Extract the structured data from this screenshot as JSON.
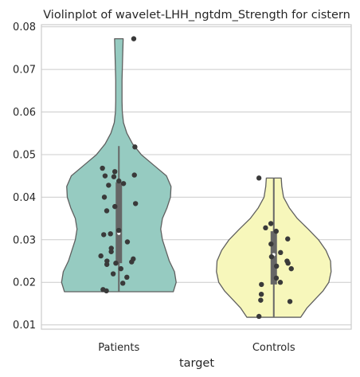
{
  "chart_data": {
    "type": "violin",
    "title": "Violinplot of wavelet-LHH_ngtdm_Strength for cistern",
    "xlabel": "target",
    "ylabel": "",
    "ylim": [
      0.009,
      0.0805
    ],
    "yticks": [
      "0.01",
      "0.02",
      "0.03",
      "0.04",
      "0.05",
      "0.06",
      "0.07",
      "0.08"
    ],
    "grid": true,
    "categories": [
      "Patients",
      "Controls"
    ],
    "series": [
      {
        "category": "Patients",
        "color": "#96cbc1",
        "min": 0.0178,
        "max": 0.0772,
        "q1": 0.0245,
        "median": 0.0315,
        "q3": 0.0435,
        "whisker_low": 0.0178,
        "whisker_high": 0.052,
        "density": [
          [
            0.0178,
            0.95
          ],
          [
            0.02,
            1.0
          ],
          [
            0.0225,
            0.97
          ],
          [
            0.025,
            0.88
          ],
          [
            0.0275,
            0.82
          ],
          [
            0.03,
            0.76
          ],
          [
            0.0325,
            0.73
          ],
          [
            0.035,
            0.76
          ],
          [
            0.0375,
            0.84
          ],
          [
            0.04,
            0.9
          ],
          [
            0.0425,
            0.91
          ],
          [
            0.045,
            0.83
          ],
          [
            0.0475,
            0.61
          ],
          [
            0.05,
            0.39
          ],
          [
            0.0525,
            0.24
          ],
          [
            0.055,
            0.14
          ],
          [
            0.0575,
            0.08
          ],
          [
            0.06,
            0.06
          ],
          [
            0.0625,
            0.055
          ],
          [
            0.065,
            0.055
          ],
          [
            0.0675,
            0.055
          ],
          [
            0.07,
            0.06
          ],
          [
            0.0725,
            0.065
          ],
          [
            0.075,
            0.07
          ],
          [
            0.0772,
            0.075
          ]
        ],
        "points": [
          0.0772,
          0.0518,
          0.0468,
          0.046,
          0.0452,
          0.045,
          0.0448,
          0.0438,
          0.0432,
          0.0428,
          0.04,
          0.0385,
          0.0378,
          0.0368,
          0.0322,
          0.0314,
          0.0312,
          0.0295,
          0.028,
          0.0272,
          0.0262,
          0.0255,
          0.025,
          0.0248,
          0.0245,
          0.0242,
          0.0232,
          0.022,
          0.0212,
          0.0198,
          0.0183,
          0.018
        ]
      },
      {
        "category": "Controls",
        "color": "#f7f7bb",
        "min": 0.0118,
        "max": 0.0445,
        "q1": 0.0195,
        "median": 0.0265,
        "q3": 0.032,
        "whisker_low": 0.0118,
        "whisker_high": 0.0445,
        "density": [
          [
            0.0118,
            0.47
          ],
          [
            0.014,
            0.58
          ],
          [
            0.016,
            0.72
          ],
          [
            0.018,
            0.86
          ],
          [
            0.02,
            0.96
          ],
          [
            0.0225,
            1.0
          ],
          [
            0.025,
            0.99
          ],
          [
            0.0275,
            0.91
          ],
          [
            0.03,
            0.78
          ],
          [
            0.0325,
            0.6
          ],
          [
            0.035,
            0.41
          ],
          [
            0.0375,
            0.27
          ],
          [
            0.04,
            0.17
          ],
          [
            0.0425,
            0.14
          ],
          [
            0.0445,
            0.13
          ]
        ],
        "points": [
          0.0445,
          0.0338,
          0.0328,
          0.032,
          0.0302,
          0.029,
          0.027,
          0.026,
          0.025,
          0.0245,
          0.0238,
          0.0232,
          0.021,
          0.02,
          0.0195,
          0.0172,
          0.0158,
          0.0155,
          0.012
        ]
      }
    ]
  }
}
